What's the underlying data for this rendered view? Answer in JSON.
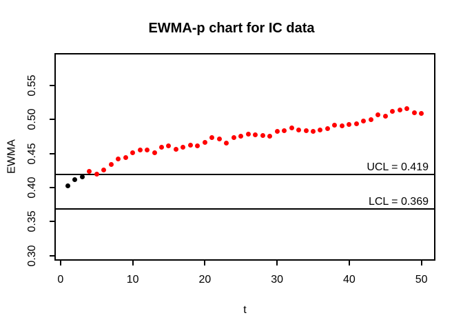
{
  "chart_data": {
    "type": "scatter",
    "title": "EWMA-p chart for IC data",
    "xlabel": "t",
    "ylabel": "EWMA",
    "x_ticks": [
      0,
      10,
      20,
      30,
      40,
      50
    ],
    "y_ticks": [
      0.3,
      0.35,
      0.4,
      0.45,
      0.5,
      0.55
    ],
    "xlim": [
      -0.75,
      51.85
    ],
    "ylim": [
      0.2936,
      0.5966
    ],
    "grid": false,
    "legend": "none",
    "control_limits": {
      "ucl": {
        "value": 0.419,
        "label": "UCL = 0.419"
      },
      "lcl": {
        "value": 0.369,
        "label": "LCL = 0.369"
      }
    },
    "point_colors": {
      "in_control": "#000000",
      "out_of_control": "#ff0000"
    },
    "series": [
      {
        "name": "EWMA",
        "x": [
          1,
          2,
          3,
          4,
          5,
          6,
          7,
          8,
          9,
          10,
          11,
          12,
          13,
          14,
          15,
          16,
          17,
          18,
          19,
          20,
          21,
          22,
          23,
          24,
          25,
          26,
          27,
          28,
          29,
          30,
          31,
          32,
          33,
          34,
          35,
          36,
          37,
          38,
          39,
          40,
          41,
          42,
          43,
          44,
          45,
          46,
          47,
          48,
          49,
          50
        ],
        "values": [
          0.403,
          0.412,
          0.416,
          0.424,
          0.42,
          0.426,
          0.434,
          0.442,
          0.444,
          0.451,
          0.455,
          0.455,
          0.451,
          0.459,
          0.461,
          0.456,
          0.459,
          0.462,
          0.461,
          0.466,
          0.473,
          0.471,
          0.465,
          0.473,
          0.476,
          0.479,
          0.478,
          0.477,
          0.476,
          0.483,
          0.484,
          0.488,
          0.485,
          0.484,
          0.483,
          0.485,
          0.487,
          0.492,
          0.491,
          0.493,
          0.494,
          0.498,
          0.5,
          0.507,
          0.505,
          0.512,
          0.514,
          0.516,
          0.51,
          0.509
        ],
        "colors_by_index": [
          0,
          0,
          0,
          1,
          1,
          1,
          1,
          1,
          1,
          1,
          1,
          1,
          1,
          1,
          1,
          1,
          1,
          1,
          1,
          1,
          1,
          1,
          1,
          1,
          1,
          1,
          1,
          1,
          1,
          1,
          1,
          1,
          1,
          1,
          1,
          1,
          1,
          1,
          1,
          1,
          1,
          1,
          1,
          1,
          1,
          1,
          1,
          1,
          1,
          1
        ]
      }
    ]
  }
}
